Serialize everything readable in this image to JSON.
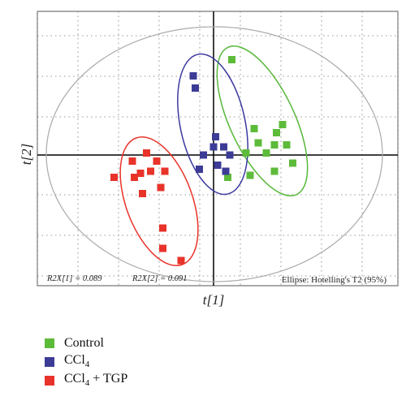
{
  "chart_data": {
    "type": "scatter",
    "xlabel": "t[1]",
    "ylabel": "t[2]",
    "xlim": [
      -9,
      8.5
    ],
    "ylim": [
      -6.2,
      7
    ],
    "grid": true,
    "legend_position": "bottom-left, below plot",
    "series": [
      {
        "name": "Control",
        "color": "#5dbb3a",
        "ellipse_color": "#58b83a",
        "points": [
          [
            0.9,
            4.7
          ],
          [
            2.0,
            1.3
          ],
          [
            3.4,
            1.5
          ],
          [
            3.1,
            1.1
          ],
          [
            2.2,
            0.6
          ],
          [
            3.0,
            0.5
          ],
          [
            3.6,
            0.5
          ],
          [
            2.6,
            0.1
          ],
          [
            1.6,
            0.1
          ],
          [
            3.9,
            -0.4
          ],
          [
            3.0,
            -0.8
          ],
          [
            1.8,
            -1.0
          ],
          [
            0.7,
            -1.1
          ]
        ]
      },
      {
        "name": "CCl4",
        "color": "#3c3c97",
        "ellipse_color": "#3b3aa0",
        "points": [
          [
            -1.0,
            3.9
          ],
          [
            -0.9,
            3.3
          ],
          [
            0.1,
            0.9
          ],
          [
            0.5,
            0.4
          ],
          [
            0.0,
            0.4
          ],
          [
            -0.5,
            0.0
          ],
          [
            0.8,
            0.0
          ],
          [
            0.2,
            -0.5
          ],
          [
            -0.7,
            -0.7
          ],
          [
            0.6,
            -0.8
          ]
        ]
      },
      {
        "name": "CCl4 + TGP",
        "color": "#e8332a",
        "ellipse_color": "#e8332a",
        "points": [
          [
            -3.3,
            0.1
          ],
          [
            -4.0,
            -0.3
          ],
          [
            -2.8,
            -0.3
          ],
          [
            -3.1,
            -0.8
          ],
          [
            -3.6,
            -0.9
          ],
          [
            -2.4,
            -0.8
          ],
          [
            -3.9,
            -1.1
          ],
          [
            -4.9,
            -1.1
          ],
          [
            -2.6,
            -1.6
          ],
          [
            -3.5,
            -1.9
          ],
          [
            -2.5,
            -3.6
          ],
          [
            -2.5,
            -4.6
          ],
          [
            -1.6,
            -5.2
          ]
        ]
      }
    ],
    "annotations": {
      "r2x1": "R2X[1] = 0.089",
      "r2x2": "R2X[2] = 0.091",
      "ellipse_note": "Ellipse: Hotelling's T2 (95%)"
    }
  }
}
